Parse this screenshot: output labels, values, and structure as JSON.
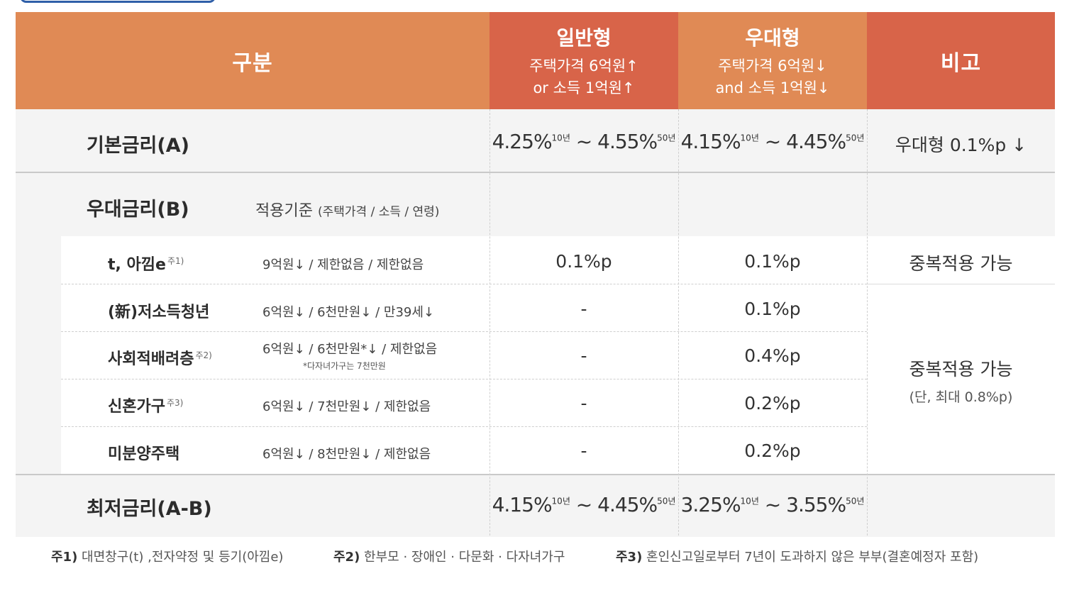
{
  "header": {
    "gubun": "구분",
    "general": {
      "title": "일반형",
      "line1": "주택가격 6억원↑",
      "line2": "or 소득 1억원↑"
    },
    "preferred": {
      "title": "우대형",
      "line1": "주택가격 6억원↓",
      "line2": "and 소득 1억원↓"
    },
    "note": "비고"
  },
  "base_rate": {
    "label": "기본금리(A)",
    "general": {
      "from": "4.25%",
      "from_term": "10년",
      "sep": "~",
      "to": "4.55%",
      "to_term": "50년"
    },
    "preferred": {
      "from": "4.15%",
      "from_term": "10년",
      "sep": "~",
      "to": "4.45%",
      "to_term": "50년"
    },
    "note": "우대형 0.1%p ↓"
  },
  "pref_rate": {
    "label": "우대금리(B)",
    "criteria_label": "적용기준",
    "criteria_detail": "(주택가격 / 소득 / 연령)",
    "rows": [
      {
        "name": "t, 아낌e",
        "note_ref": "주1)",
        "criteria": "9억원↓ / 제한없음 / 제한없음",
        "general": "0.1%p",
        "preferred": "0.1%p"
      },
      {
        "name": "(新)저소득청년",
        "note_ref": "",
        "criteria": "6억원↓ / 6천만원↓ / 만39세↓",
        "general": "-",
        "preferred": "0.1%p"
      },
      {
        "name": "사회적배려층",
        "note_ref": "주2)",
        "criteria": "6억원↓ / 6천만원*↓ / 제한없음",
        "sub_note": "*다자녀가구는 7천만원",
        "general": "-",
        "preferred": "0.4%p"
      },
      {
        "name": "신혼가구",
        "note_ref": "주3)",
        "criteria": "6억원↓ / 7천만원↓ / 제한없음",
        "general": "-",
        "preferred": "0.2%p"
      },
      {
        "name": "미분양주택",
        "note_ref": "",
        "criteria": "6억원↓ / 8천만원↓ / 제한없음",
        "general": "-",
        "preferred": "0.2%p"
      }
    ],
    "note_first": "중복적용 가능",
    "note_rest": "중복적용 가능",
    "note_rest_sub": "(단, 최대 0.8%p)"
  },
  "min_rate": {
    "label": "최저금리(A-B)",
    "general": {
      "from": "4.15%",
      "from_term": "10년",
      "sep": "~",
      "to": "4.45%",
      "to_term": "50년"
    },
    "preferred": {
      "from": "3.25%",
      "from_term": "10년",
      "sep": "~",
      "to": "3.55%",
      "to_term": "50년"
    }
  },
  "footnotes": [
    {
      "key": "주1)",
      "text": "대면창구(t) ,전자약정 및 등기(아낌e)"
    },
    {
      "key": "주2)",
      "text": "한부모 · 장애인 · 다문화 · 다자녀가구"
    },
    {
      "key": "주3)",
      "text": "혼인신고일로부터 7년이 도과하지 않은 부부(결혼예정자 포함)"
    }
  ],
  "colors": {
    "header_orange": "#e08a55",
    "header_red": "#d86449",
    "band_gray": "#f4f4f4"
  }
}
